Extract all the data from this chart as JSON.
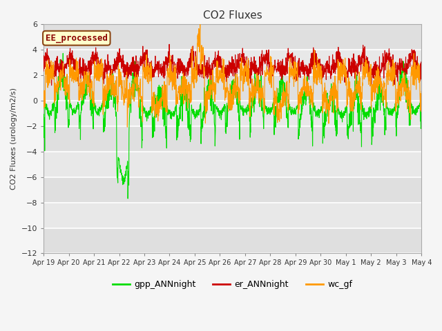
{
  "title": "CO2 Fluxes",
  "ylabel": "CO2 Fluxes (urology/m2/s)",
  "ylim": [
    -12,
    6
  ],
  "yticks": [
    -12,
    -10,
    -8,
    -6,
    -4,
    -2,
    0,
    2,
    4,
    6
  ],
  "n_points": 2000,
  "n_days": 15.5,
  "seed": 123,
  "colors": {
    "gpp": "#00dd00",
    "er": "#cc0000",
    "wc": "#ff9900"
  },
  "legend_labels": [
    "gpp_ANNnight",
    "er_ANNnight",
    "wc_gf"
  ],
  "annotation_text": "EE_processed",
  "annotation_color": "#8b0000",
  "annotation_bg": "#ffffcc",
  "annotation_border": "#8b4513",
  "background_inner": "#e8e8e8",
  "background_outer": "#f5f5f5",
  "grid_color": "#ffffff",
  "xtick_labels": [
    "Apr 19",
    "Apr 20",
    "Apr 21",
    "Apr 22",
    "Apr 23",
    "Apr 24",
    "Apr 25",
    "Apr 26",
    "Apr 27",
    "Apr 28",
    "Apr 29",
    "Apr 30",
    "May 1",
    "May 2",
    "May 3",
    "May 4"
  ],
  "linewidth": 0.8,
  "figwidth": 6.4,
  "figheight": 4.8,
  "dpi": 100
}
